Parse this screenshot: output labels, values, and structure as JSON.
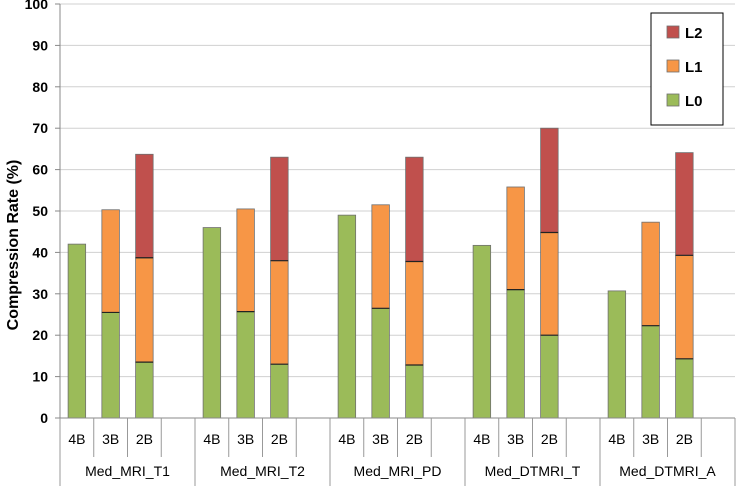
{
  "chart_data": {
    "type": "bar",
    "stacked": true,
    "title": "",
    "xlabel": "",
    "ylabel": "Compression Rate (%)",
    "ylim": [
      0,
      100
    ],
    "yticks": [
      0,
      10,
      20,
      30,
      40,
      50,
      60,
      70,
      80,
      90,
      100
    ],
    "grid": true,
    "legend": "top-right",
    "groups": [
      "Med_MRI_T1",
      "Med_MRI_T2",
      "Med_MRI_PD",
      "Med_DTMRI_T",
      "Med_DTMRI_A"
    ],
    "categories": [
      "4B",
      "3B",
      "2B"
    ],
    "series": [
      {
        "name": "L0",
        "color": "#9BBB59",
        "values": [
          [
            42,
            25.5,
            13.5
          ],
          [
            46,
            25.7,
            13
          ],
          [
            49,
            26.5,
            12.8
          ],
          [
            41.7,
            31,
            20
          ],
          [
            30.7,
            22.3,
            14.3
          ]
        ]
      },
      {
        "name": "L1",
        "color": "#F79646",
        "values": [
          [
            0,
            24.8,
            25.2
          ],
          [
            0,
            24.8,
            25
          ],
          [
            0,
            25,
            25
          ],
          [
            0,
            24.8,
            24.8
          ],
          [
            0,
            25,
            25
          ]
        ]
      },
      {
        "name": "L2",
        "color": "#C0504D",
        "values": [
          [
            0,
            0,
            25
          ],
          [
            0,
            0,
            25
          ],
          [
            0,
            0,
            25.2
          ],
          [
            0,
            0,
            25.2
          ],
          [
            0,
            0,
            24.8
          ]
        ]
      }
    ]
  }
}
